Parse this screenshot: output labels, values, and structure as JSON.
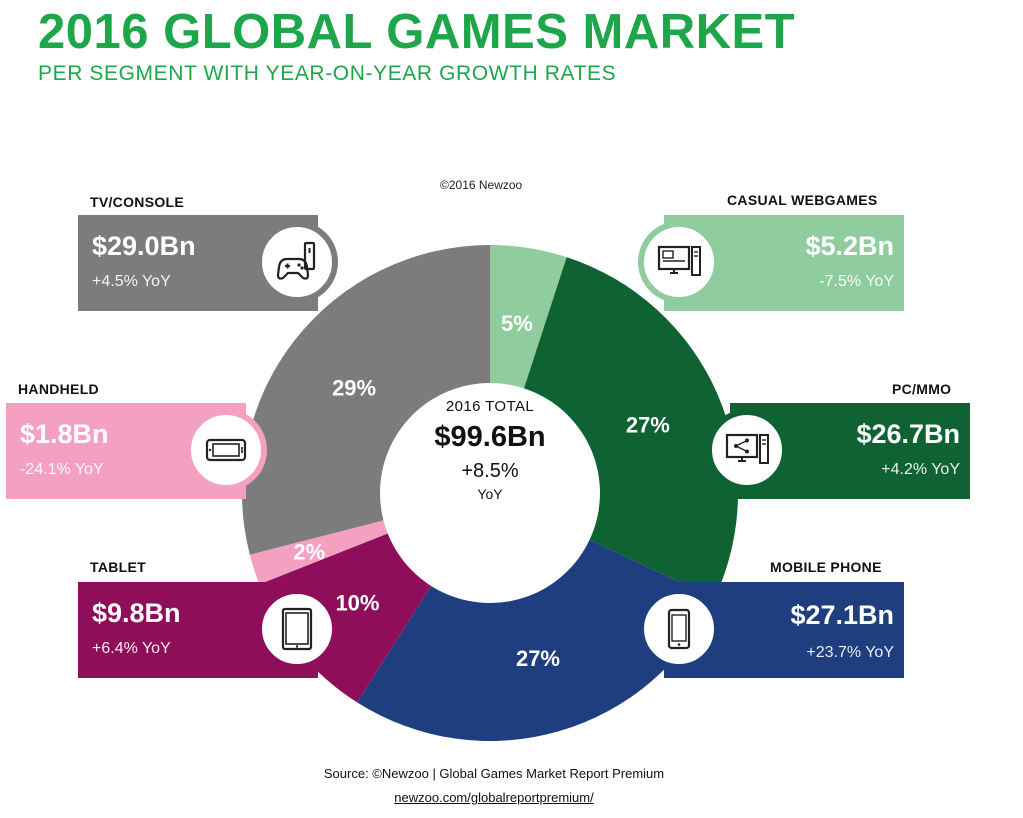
{
  "title": "2016 GLOBAL GAMES MARKET",
  "subtitle": "PER SEGMENT WITH YEAR-ON-YEAR GROWTH RATES",
  "copyright": "©2016 Newzoo",
  "center": {
    "label": "2016 TOTAL",
    "value": "$99.6Bn",
    "growth": "+8.5%",
    "unit": "YoY"
  },
  "source": "Source: ©Newzoo | Global Games Market Report Premium",
  "source_link": "newzoo.com/globalreportpremium/",
  "chart_data": {
    "type": "pie",
    "categories": [
      "CASUAL WEBGAMES",
      "PC/MMO",
      "MOBILE PHONE",
      "TABLET",
      "HANDHELD",
      "TV/CONSOLE"
    ],
    "values": [
      5,
      27,
      27,
      10,
      2,
      29
    ],
    "slice_labels": [
      "5%",
      "27%",
      "27%",
      "10%",
      "2%",
      "29%"
    ],
    "colors": [
      "#8fcd9e",
      "#0f6232",
      "#1e3e80",
      "#8e0e5a",
      "#f4a0c1",
      "#7c7c7c"
    ],
    "donut": true
  },
  "segments": [
    {
      "name": "CASUAL WEBGAMES",
      "value": "$5.2Bn",
      "yoy": "-7.5% YoY",
      "color": "#8fcd9e",
      "icon": "computer-window-icon"
    },
    {
      "name": "PC/MMO",
      "value": "$26.7Bn",
      "yoy": "+4.2% YoY",
      "color": "#0f6232",
      "icon": "computer-share-icon"
    },
    {
      "name": "MOBILE PHONE",
      "value": "$27.1Bn",
      "yoy": "+23.7% YoY",
      "color": "#1e3e80",
      "icon": "smartphone-icon"
    },
    {
      "name": "TABLET",
      "value": "$9.8Bn",
      "yoy": "+6.4% YoY",
      "color": "#8e0e5a",
      "icon": "tablet-icon"
    },
    {
      "name": "HANDHELD",
      "value": "$1.8Bn",
      "yoy": "-24.1% YoY",
      "color": "#f4a0c1",
      "icon": "handheld-console-icon"
    },
    {
      "name": "TV/CONSOLE",
      "value": "$29.0Bn",
      "yoy": "+4.5% YoY",
      "color": "#7c7c7c",
      "icon": "gamepad-console-icon"
    }
  ]
}
